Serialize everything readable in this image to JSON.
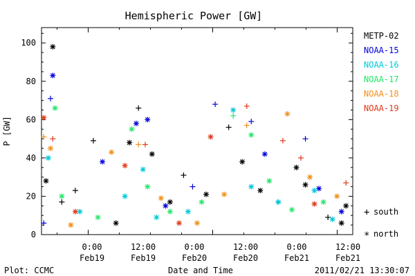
{
  "chart_data": {
    "type": "scatter",
    "title": "Hemispheric Power [GW]",
    "ylabel": "P [GW]",
    "xlabel": "Date and Time",
    "ylim": [
      0,
      108
    ],
    "xlim_hours": [
      -16.5,
      13.5
    ],
    "yticks": [
      0,
      20,
      40,
      60,
      80,
      100
    ],
    "xticks": [
      {
        "time": "0:00",
        "date": "Feb19"
      },
      {
        "time": "12:00",
        "date": "Feb19"
      },
      {
        "time": "0:00",
        "date": "Feb20"
      },
      {
        "time": "12:00",
        "date": "Feb20"
      },
      {
        "time": "0:00",
        "date": "Feb21"
      },
      {
        "time": "12:00",
        "date": "Feb21"
      }
    ],
    "legend_position": "right",
    "marker_legend": {
      "south": "south",
      "north": "north"
    },
    "footer_left": "Plot: CCMC",
    "footer_right": "2011/02/21  13:30:07",
    "series": [
      {
        "name": "METP-02",
        "color": "#000000",
        "points": [
          {
            "x": -15.5,
            "y": 28,
            "m": "*"
          },
          {
            "x": -14.0,
            "y": 98,
            "m": "*"
          },
          {
            "x": -12.0,
            "y": 17,
            "m": "+"
          },
          {
            "x": -9.0,
            "y": 23,
            "m": "+"
          },
          {
            "x": -5.0,
            "y": 49,
            "m": "+"
          },
          {
            "x": 0.0,
            "y": 6,
            "m": "*"
          },
          {
            "x": 3.0,
            "y": 48,
            "m": "*"
          },
          {
            "x": 5.0,
            "y": 66,
            "m": "+"
          },
          {
            "x": 8.0,
            "y": 42,
            "m": "*"
          },
          {
            "x": 12.0,
            "y": 17,
            "m": "*"
          },
          {
            "x": 15.0,
            "y": 31,
            "m": "+"
          },
          {
            "x": 20.0,
            "y": 21,
            "m": "*"
          },
          {
            "x": 25.0,
            "y": 56,
            "m": "+"
          },
          {
            "x": 28.0,
            "y": 38,
            "m": "*"
          },
          {
            "x": 32.0,
            "y": 23,
            "m": "*"
          },
          {
            "x": 36.0,
            "y": 17,
            "m": "+"
          },
          {
            "x": 40.0,
            "y": 35,
            "m": "*"
          },
          {
            "x": 42.0,
            "y": 26,
            "m": "*"
          },
          {
            "x": 47.0,
            "y": 9,
            "m": "+"
          },
          {
            "x": 50.0,
            "y": 6,
            "m": "*"
          },
          {
            "x": 51.0,
            "y": 15,
            "m": "*"
          }
        ]
      },
      {
        "name": "NOAA-15",
        "color": "#0000d8",
        "points": [
          {
            "x": -16.0,
            "y": 6,
            "m": "+"
          },
          {
            "x": -14.0,
            "y": 83,
            "m": "*"
          },
          {
            "x": -14.5,
            "y": 71,
            "m": "+"
          },
          {
            "x": -3.0,
            "y": 38,
            "m": "*"
          },
          {
            "x": 4.5,
            "y": 58,
            "m": "*"
          },
          {
            "x": 7.0,
            "y": 60,
            "m": "*"
          },
          {
            "x": 11.0,
            "y": 15,
            "m": "*"
          },
          {
            "x": 17.0,
            "y": 25,
            "m": "+"
          },
          {
            "x": 22.0,
            "y": 68,
            "m": "+"
          },
          {
            "x": 30.0,
            "y": 59,
            "m": "+"
          },
          {
            "x": 33.0,
            "y": 42,
            "m": "*"
          },
          {
            "x": 42.0,
            "y": 50,
            "m": "+"
          },
          {
            "x": 45.0,
            "y": 24,
            "m": "*"
          },
          {
            "x": 50.0,
            "y": 12,
            "m": "*"
          }
        ]
      },
      {
        "name": "NOAA-16",
        "color": "#00c8d8",
        "points": [
          {
            "x": -15.0,
            "y": 40,
            "m": "*"
          },
          {
            "x": -8.0,
            "y": 12,
            "m": "*"
          },
          {
            "x": 2.0,
            "y": 20,
            "m": "*"
          },
          {
            "x": 6.0,
            "y": 34,
            "m": "*"
          },
          {
            "x": 9.0,
            "y": 9,
            "m": "*"
          },
          {
            "x": 16.0,
            "y": 12,
            "m": "*"
          },
          {
            "x": 26.0,
            "y": 65,
            "m": "*"
          },
          {
            "x": 30.0,
            "y": 25,
            "m": "*"
          },
          {
            "x": 36.0,
            "y": 17,
            "m": "*"
          },
          {
            "x": 44.0,
            "y": 23,
            "m": "*"
          },
          {
            "x": 48.0,
            "y": 8,
            "m": "*"
          }
        ]
      },
      {
        "name": "NOAA-17",
        "color": "#20e868",
        "points": [
          {
            "x": -13.5,
            "y": 66,
            "m": "*"
          },
          {
            "x": -12.0,
            "y": 20,
            "m": "*"
          },
          {
            "x": -4.0,
            "y": 9,
            "m": "*"
          },
          {
            "x": 3.5,
            "y": 55,
            "m": "*"
          },
          {
            "x": 7.0,
            "y": 25,
            "m": "*"
          },
          {
            "x": 12.0,
            "y": 12,
            "m": "*"
          },
          {
            "x": 19.0,
            "y": 17,
            "m": "*"
          },
          {
            "x": 26.0,
            "y": 62,
            "m": "+"
          },
          {
            "x": 30.0,
            "y": 52,
            "m": "*"
          },
          {
            "x": 34.0,
            "y": 28,
            "m": "*"
          },
          {
            "x": 39.0,
            "y": 13,
            "m": "*"
          },
          {
            "x": 46.0,
            "y": 17,
            "m": "*"
          }
        ]
      },
      {
        "name": "NOAA-18",
        "color": "#f09018",
        "points": [
          {
            "x": -16.0,
            "y": 51,
            "m": "+"
          },
          {
            "x": -14.5,
            "y": 45,
            "m": "*"
          },
          {
            "x": -10.0,
            "y": 5,
            "m": "*"
          },
          {
            "x": -1.0,
            "y": 43,
            "m": "*"
          },
          {
            "x": 5.0,
            "y": 47,
            "m": "+"
          },
          {
            "x": 10.0,
            "y": 19,
            "m": "*"
          },
          {
            "x": 18.0,
            "y": 6,
            "m": "*"
          },
          {
            "x": 24.0,
            "y": 21,
            "m": "*"
          },
          {
            "x": 29.0,
            "y": 57,
            "m": "+"
          },
          {
            "x": 38.0,
            "y": 63,
            "m": "*"
          },
          {
            "x": 43.0,
            "y": 30,
            "m": "*"
          },
          {
            "x": 49.0,
            "y": 20,
            "m": "*"
          }
        ]
      },
      {
        "name": "NOAA-19",
        "color": "#e03818",
        "points": [
          {
            "x": -16.0,
            "y": 61,
            "m": "*"
          },
          {
            "x": -14.0,
            "y": 50,
            "m": "+"
          },
          {
            "x": -9.0,
            "y": 12,
            "m": "*"
          },
          {
            "x": 2.0,
            "y": 36,
            "m": "*"
          },
          {
            "x": 6.5,
            "y": 47,
            "m": "+"
          },
          {
            "x": 14.0,
            "y": 6,
            "m": "*"
          },
          {
            "x": 21.0,
            "y": 51,
            "m": "*"
          },
          {
            "x": 29.0,
            "y": 67,
            "m": "+"
          },
          {
            "x": 37.0,
            "y": 49,
            "m": "+"
          },
          {
            "x": 41.0,
            "y": 40,
            "m": "+"
          },
          {
            "x": 44.0,
            "y": 16,
            "m": "*"
          },
          {
            "x": 51.0,
            "y": 27,
            "m": "+"
          }
        ]
      }
    ]
  }
}
